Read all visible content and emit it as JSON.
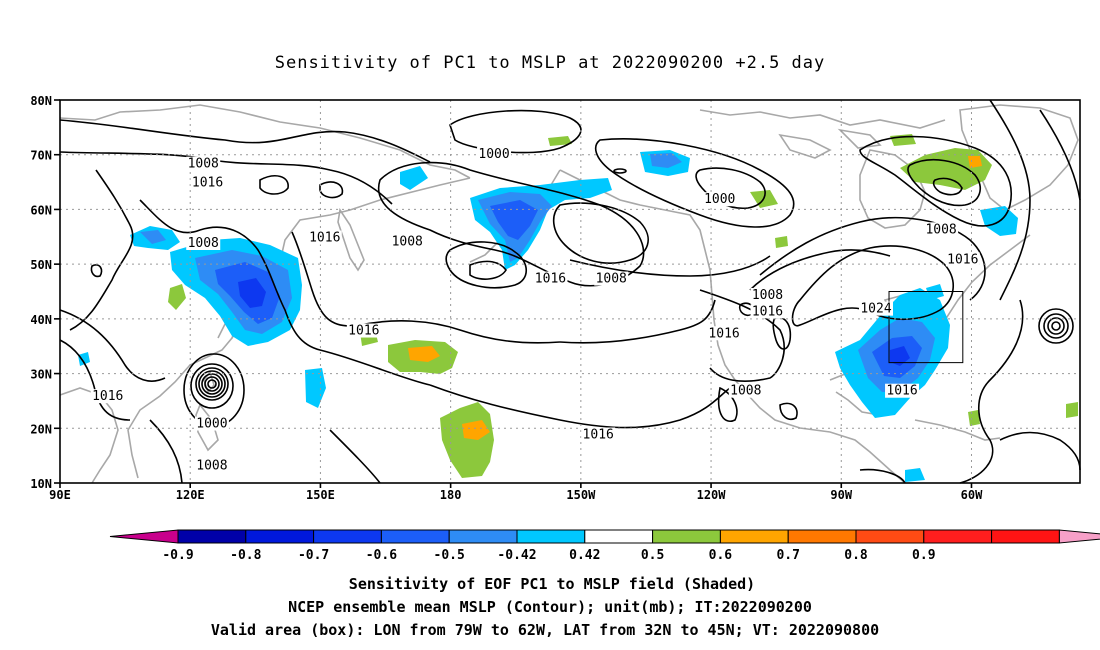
{
  "title": "Sensitivity of PC1 to MSLP at 2022090200 +2.5 day",
  "axes": {
    "lat_labels": [
      "80N",
      "70N",
      "60N",
      "50N",
      "40N",
      "30N",
      "20N",
      "10N"
    ],
    "lon_labels": [
      "90E",
      "120E",
      "150E",
      "180",
      "150W",
      "120W",
      "90W",
      "60W"
    ]
  },
  "contours": {
    "unit": "mb",
    "labels": [
      {
        "text": "1008",
        "lon": 123,
        "lat": 68
      },
      {
        "text": "1016",
        "lon": 124,
        "lat": 64.6
      },
      {
        "text": "1000",
        "lon": 190,
        "lat": 69.8
      },
      {
        "text": "1000",
        "lon": 242,
        "lat": 61.5
      },
      {
        "text": "1008",
        "lon": 123,
        "lat": 53.5
      },
      {
        "text": "1016",
        "lon": 151,
        "lat": 54.5
      },
      {
        "text": "1008",
        "lon": 170,
        "lat": 53.8
      },
      {
        "text": "1016",
        "lon": 203,
        "lat": 47
      },
      {
        "text": "1008",
        "lon": 217,
        "lat": 47
      },
      {
        "text": "1008",
        "lon": 293,
        "lat": 56
      },
      {
        "text": "1016",
        "lon": 298,
        "lat": 50.5
      },
      {
        "text": "1024",
        "lon": 278,
        "lat": 41.5
      },
      {
        "text": "1008",
        "lon": 253,
        "lat": 44
      },
      {
        "text": "1016",
        "lon": 253,
        "lat": 41
      },
      {
        "text": "1016",
        "lon": 243,
        "lat": 37
      },
      {
        "text": "1016",
        "lon": 160,
        "lat": 37.5
      },
      {
        "text": "1008",
        "lon": 248,
        "lat": 26.5
      },
      {
        "text": "1016",
        "lon": 284,
        "lat": 26.5
      },
      {
        "text": "1016",
        "lon": 101,
        "lat": 25.5
      },
      {
        "text": "1000",
        "lon": 125,
        "lat": 20.5
      },
      {
        "text": "1008",
        "lon": 125,
        "lat": 12.8
      },
      {
        "text": "1016",
        "lon": 214,
        "lat": 18.5
      }
    ]
  },
  "valid_box": {
    "lon_min": -79,
    "lon_max": -62,
    "lat_min": 32,
    "lat_max": 45
  },
  "colorbar": {
    "ticks": [
      "-0.9",
      "-0.8",
      "-0.7",
      "-0.6",
      "-0.5",
      "-0.42",
      "0.42",
      "0.5",
      "0.6",
      "0.7",
      "0.8",
      "0.9"
    ],
    "colors": [
      "#c8008c",
      "#0000a8",
      "#0018dc",
      "#0d38f0",
      "#1c5ef8",
      "#2e8cf5",
      "#00c8ff",
      "#ffffff",
      "#8cc83c",
      "#ffa500",
      "#ff7800",
      "#ff4b14",
      "#ff1e1e",
      "#ff1414",
      "#f7a0c8"
    ]
  },
  "captions": {
    "line1": "Sensitivity of EOF PC1 to MSLP field (Shaded)",
    "line2": "NCEP ensemble mean MSLP (Contour); unit(mb); IT:2022090200",
    "line3": "Valid area (box): LON from 79W to 62W, LAT from 32N to 45N; VT: 2022090800"
  }
}
